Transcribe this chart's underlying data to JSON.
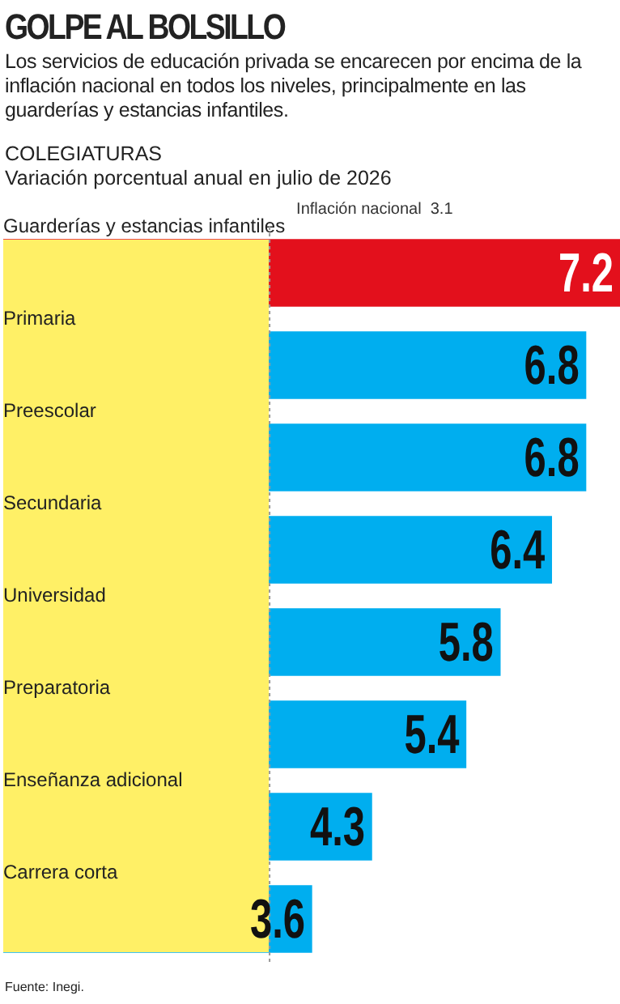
{
  "chart_data": {
    "type": "bar",
    "orientation": "horizontal",
    "title": "GOLPE AL BOLSILLO",
    "subtitle": "Los servicios de educación privada se encarecen por encima de la inflación nacional en todos los niveles, principalmente en las guarderías y estancias infantiles.",
    "annotations": [
      "COLEGIATURAS",
      "Variación porcentual anual en julio de 2026",
      "Fuente: Inegi."
    ],
    "categories": [
      "Guarderías y estancias infantiles",
      "Primaria",
      "Preescolar",
      "Secundaria",
      "Universidad",
      "Preparatoria",
      "Enseñanza adicional",
      "Carrera corta"
    ],
    "values": [
      7.2,
      6.8,
      6.8,
      6.4,
      5.8,
      5.4,
      4.3,
      3.6
    ],
    "colors": [
      "#e3101c",
      "#00aeef",
      "#00aeef",
      "#00aeef",
      "#00aeef",
      "#00aeef",
      "#00aeef",
      "#00aeef"
    ],
    "tick_labels": false,
    "legend": false,
    "data_labels": true,
    "ref_lines": [
      {
        "axis": "x",
        "value": 3.1,
        "label": "Inflación nacional  3.1",
        "color": "#999999",
        "line_style": "dotted"
      }
    ],
    "bands": [
      {
        "axis": "x",
        "from": 0,
        "to": 3.1,
        "color": "#fff066"
      }
    ]
  }
}
